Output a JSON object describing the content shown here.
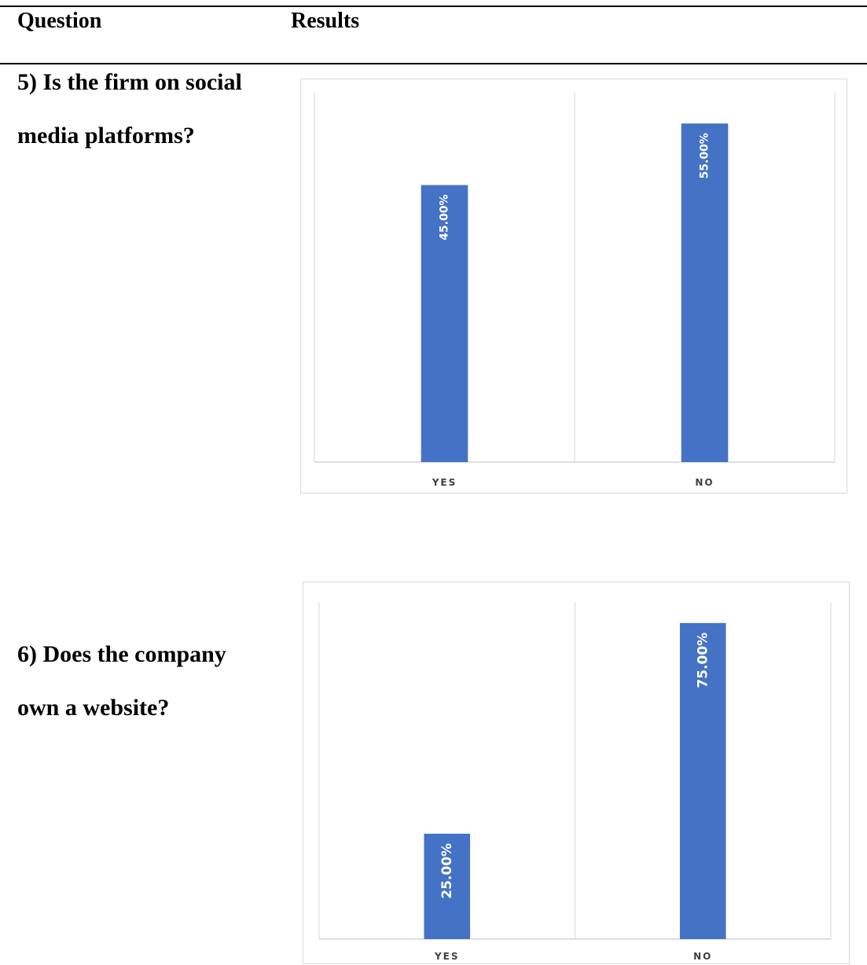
{
  "table": {
    "header": {
      "question": "Question",
      "results": "Results"
    },
    "rows": [
      {
        "question_lines": [
          "5) Is the firm on social",
          "media platforms?"
        ]
      },
      {
        "question_lines": [
          "6) Does the company",
          "own a website?"
        ]
      }
    ]
  },
  "chart_data": [
    {
      "type": "bar",
      "categories": [
        "YES",
        "NO"
      ],
      "values": [
        45,
        55
      ],
      "data_labels": [
        "45.00%",
        "55.00%"
      ],
      "ylim": [
        0,
        60
      ],
      "grid": "vertical category separators",
      "legend": "none",
      "bar_color": "#4472C4"
    },
    {
      "type": "bar",
      "categories": [
        "YES",
        "NO"
      ],
      "values": [
        25,
        75
      ],
      "data_labels": [
        "25.00%",
        "75.00%"
      ],
      "ylim": [
        0,
        80
      ],
      "grid": "vertical category separators",
      "legend": "none",
      "bar_color": "#4472C4"
    }
  ]
}
